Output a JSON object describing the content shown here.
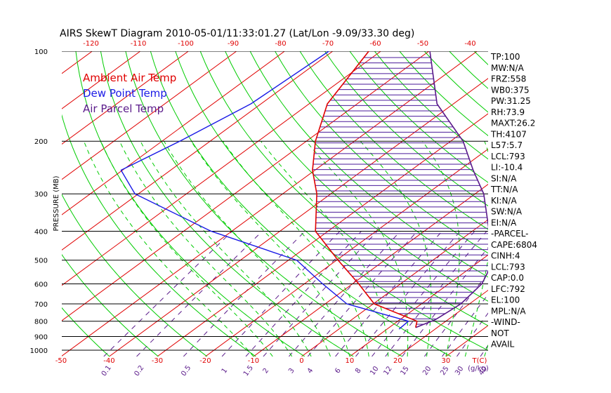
{
  "chart_data": {
    "type": "skewt",
    "title": "AIRS SkewT Diagram 2010-05-01/11:33:01.27 (Lat/Lon -9.09/33.30 deg)",
    "ylabel": "PRESSURE (MB)",
    "ylim": [
      1050,
      100
    ],
    "y_scale": "log",
    "pressure_ticks": [
      100,
      200,
      300,
      400,
      500,
      600,
      700,
      800,
      900,
      1000
    ],
    "top_temp_ticks": [
      -120,
      -110,
      -100,
      -90,
      -80,
      -70,
      -60,
      -50,
      -40
    ],
    "bottom_temp_ticks": [
      -50,
      -40,
      -30,
      -20,
      -10,
      0,
      10,
      20,
      30
    ],
    "bottom_temp_unit": "T(C)",
    "mixing_ratio_ticks": [
      "0.1",
      "0.2",
      "0.5",
      "1",
      "1.5",
      "2",
      "3",
      "4",
      "6",
      "8",
      "10",
      "12",
      "15",
      "20",
      "25",
      "30",
      "40"
    ],
    "mixing_ratio_unit": "(g/kg)",
    "legend": [
      {
        "label": "Ambient Air Temp",
        "color": "#e00000"
      },
      {
        "label": "Dew Point Temp",
        "color": "#1a1ae6"
      },
      {
        "label": "Air Parcel Temp",
        "color": "#5a1a8a"
      }
    ],
    "series": [
      {
        "name": "Ambient Air Temp",
        "color": "#e00000",
        "points": [
          [
            100,
            -72.5
          ],
          [
            150,
            -66.2
          ],
          [
            200,
            -58.1
          ],
          [
            250,
            -50.5
          ],
          [
            300,
            -42.9
          ],
          [
            400,
            -32.6
          ],
          [
            500,
            -19.7
          ],
          [
            600,
            -8.7
          ],
          [
            700,
            0.2
          ],
          [
            800,
            14.0
          ],
          [
            840,
            15.5
          ]
        ]
      },
      {
        "name": "Dew Point Temp",
        "color": "#1a1ae6",
        "points": [
          [
            100,
            -80.8
          ],
          [
            150,
            -82.1
          ],
          [
            200,
            -86.3
          ],
          [
            250,
            -90.3
          ],
          [
            300,
            -80.7
          ],
          [
            400,
            -54.3
          ],
          [
            500,
            -28.3
          ],
          [
            600,
            -16.2
          ],
          [
            700,
            -5.5
          ],
          [
            800,
            12.2
          ],
          [
            850,
            12.5
          ]
        ]
      },
      {
        "name": "Air Parcel Temp",
        "color": "#5a1a8a",
        "points": [
          [
            100,
            -59.8
          ],
          [
            150,
            -43.4
          ],
          [
            200,
            -27.4
          ],
          [
            250,
            -17.1
          ],
          [
            300,
            -8.2
          ],
          [
            400,
            3.5
          ],
          [
            500,
            12.7
          ],
          [
            600,
            16.9
          ],
          [
            700,
            18.2
          ],
          [
            790,
            17.4
          ],
          [
            840,
            15.5
          ]
        ]
      }
    ],
    "shaded_area": "Between Ambient Air Temp and Air Parcel Temp (CAPE)",
    "stats": [
      "TP:100",
      "MW:N/A",
      "FRZ:558",
      "WB0:375",
      "PW:31.25",
      "RH:73.9",
      "MAXT:26.2",
      "TH:4107",
      "L57:5.7",
      "LCL:793",
      "LI:-10.4",
      "SI:N/A",
      "TT:N/A",
      "KI:N/A",
      "SW:N/A",
      "EI:N/A",
      "-PARCEL-",
      "CAPE:6804",
      "CINH:4",
      "LCL:793",
      "CAP:0.0",
      "LFC:792",
      "EL:100",
      "MPL:N/A",
      "-WIND-",
      "NOT",
      "AVAIL"
    ],
    "colors": {
      "isotherm": "#e00000",
      "dry_adiabat": "#00cc00",
      "moist_adiabat": "#00cc00",
      "mixing_ratio": "#5a1a8a",
      "isobar": "#000000"
    }
  }
}
